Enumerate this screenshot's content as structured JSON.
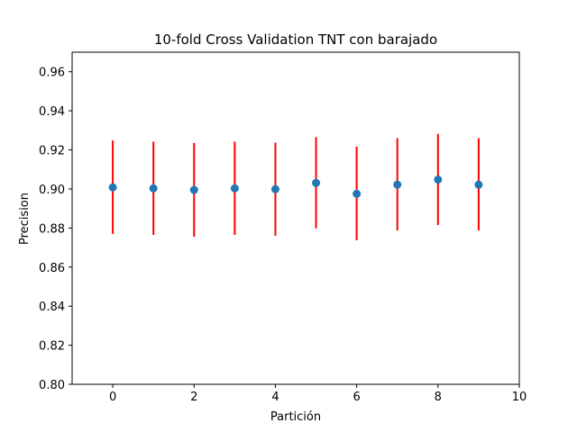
{
  "chart_data": {
    "type": "scatter",
    "title": "10-fold Cross Validation TNT con barajado",
    "xlabel": "Partición",
    "ylabel": "Precision",
    "xlim": [
      -1,
      10
    ],
    "ylim": [
      0.8,
      0.97
    ],
    "xticks": [
      0,
      2,
      4,
      6,
      8,
      10
    ],
    "yticks": [
      0.8,
      0.82,
      0.84,
      0.86,
      0.88,
      0.9,
      0.92,
      0.94,
      0.96
    ],
    "xtick_labels": [
      "0",
      "2",
      "4",
      "6",
      "8",
      "10"
    ],
    "ytick_labels": [
      "0.80",
      "0.82",
      "0.84",
      "0.86",
      "0.88",
      "0.90",
      "0.92",
      "0.94",
      "0.96"
    ],
    "grid": false,
    "series": [
      {
        "x": [
          0,
          1,
          2,
          3,
          4,
          5,
          6,
          7,
          8,
          9
        ],
        "y": [
          0.9008,
          0.9003,
          0.8995,
          0.9003,
          0.8999,
          0.9031,
          0.8975,
          0.9022,
          0.9048,
          0.9022
        ],
        "error_low": [
          0.877,
          0.8765,
          0.8755,
          0.8765,
          0.876,
          0.8798,
          0.8737,
          0.8787,
          0.8815,
          0.8788
        ],
        "error_high": [
          0.9248,
          0.9242,
          0.9235,
          0.9242,
          0.9237,
          0.9265,
          0.9217,
          0.926,
          0.9282,
          0.926
        ],
        "marker_color": "#1f77b4",
        "error_color": "#ff0000"
      }
    ]
  }
}
